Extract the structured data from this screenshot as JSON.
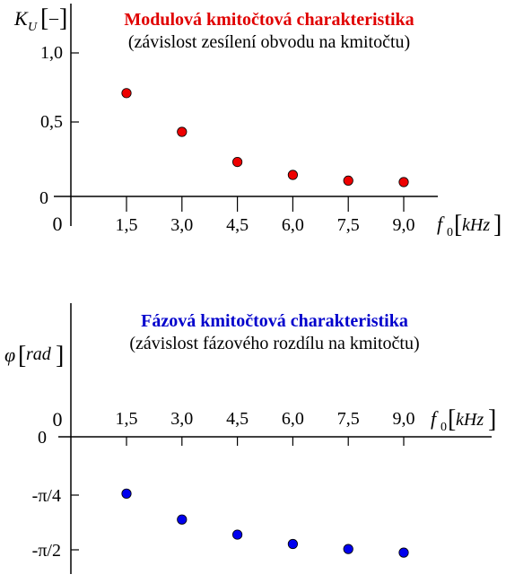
{
  "chart_data": [
    {
      "type": "scatter",
      "title": "Modulová kmitočtová charakteristika",
      "subtitle": "(závislost zesílení obvodu na kmitočtu)",
      "title_color": "#e00000",
      "ylabel": {
        "symbol": "K",
        "subscript": "U",
        "unit": "–"
      },
      "xlabel": {
        "symbol": "f",
        "subscript": "0",
        "unit": "kHz"
      },
      "origin_label": "0",
      "x_ticks": [
        "1,5",
        "3,0",
        "4,5",
        "6,0",
        "7,5",
        "9,0"
      ],
      "y_ticks": [
        {
          "label": "1,0",
          "value": 1.0
        },
        {
          "label": "0,5",
          "value": 0.5
        },
        {
          "label": "0",
          "value": 0
        }
      ],
      "ylim": [
        0,
        1.0
      ],
      "x": [
        1.5,
        3.0,
        4.5,
        6.0,
        7.5,
        9.0
      ],
      "values": [
        0.72,
        0.45,
        0.24,
        0.15,
        0.11,
        0.1
      ],
      "marker_color": "#ee0000"
    },
    {
      "type": "scatter",
      "title": "Fázová kmitočtová charakteristika",
      "subtitle": "(závislost fázového rozdílu na kmitočtu)",
      "title_color": "#0000cc",
      "ylabel": {
        "symbol": "φ",
        "unit": "rad"
      },
      "xlabel": {
        "symbol": "f",
        "subscript": "0",
        "unit": "kHz"
      },
      "origin_label": "0",
      "x_ticks": [
        "1,5",
        "3,0",
        "4,5",
        "6,0",
        "7,5",
        "9,0"
      ],
      "y_ticks": [
        {
          "label": "0",
          "value": 0
        },
        {
          "label": "-π/4",
          "value": -0.785
        },
        {
          "label": "-π/2",
          "value": -1.571
        }
      ],
      "ylim": [
        -1.571,
        0
      ],
      "x": [
        1.5,
        3.0,
        4.5,
        6.0,
        7.5,
        9.0
      ],
      "values": [
        -0.79,
        -1.15,
        -1.36,
        -1.49,
        -1.56,
        -1.61
      ],
      "marker_color": "#0000ee"
    }
  ]
}
